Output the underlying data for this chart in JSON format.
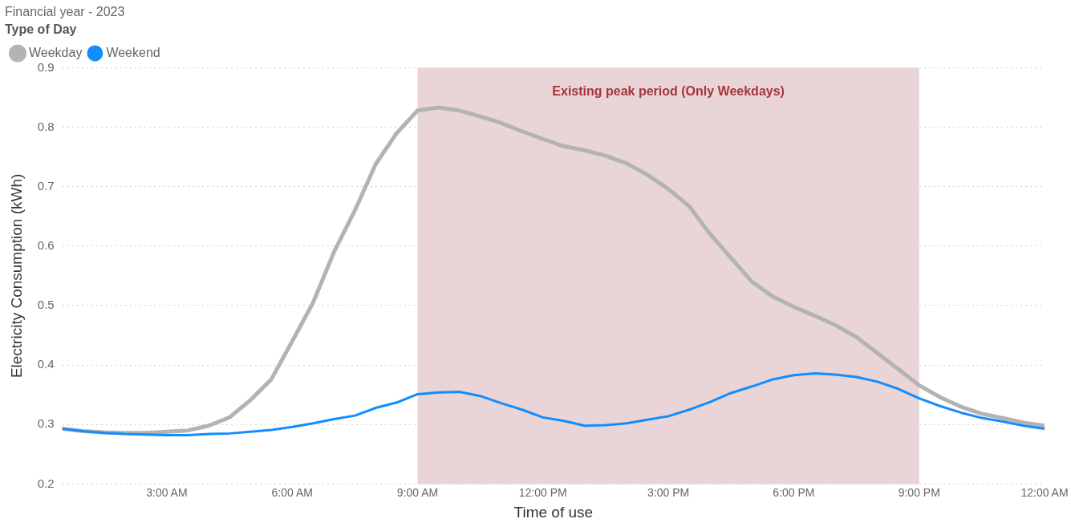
{
  "chart_data": {
    "type": "line",
    "title": "Financial year - 2023",
    "xlabel": "Time of use",
    "ylabel": "Electricity Consumption (kWh)",
    "legend_title": "Type of Day",
    "legend": "top left",
    "grid": "y",
    "marker": "none",
    "line_style": "solid",
    "x": [
      0.5,
      1,
      1.5,
      2,
      2.5,
      3,
      3.5,
      4,
      4.5,
      5,
      5.5,
      6,
      6.5,
      7,
      7.5,
      8,
      8.5,
      9,
      9.5,
      10,
      10.5,
      11,
      11.5,
      12,
      12.5,
      13,
      13.5,
      14,
      14.5,
      15,
      15.5,
      16,
      16.5,
      17,
      17.5,
      18,
      18.5,
      19,
      19.5,
      20,
      20.5,
      21,
      21.5,
      22,
      22.5,
      23,
      23.5,
      24
    ],
    "xlim": [
      0.5,
      24
    ],
    "xticks": [
      {
        "value": 3,
        "label": "3:00 AM"
      },
      {
        "value": 6,
        "label": "6:00 AM"
      },
      {
        "value": 9,
        "label": "9:00 AM"
      },
      {
        "value": 12,
        "label": "12:00 PM"
      },
      {
        "value": 15,
        "label": "3:00 PM"
      },
      {
        "value": 18,
        "label": "6:00 PM"
      },
      {
        "value": 21,
        "label": "9:00 PM"
      },
      {
        "value": 24,
        "label": "12:00 AM"
      }
    ],
    "ylim": [
      0.2,
      0.9
    ],
    "yticks": [
      0.2,
      0.3,
      0.4,
      0.5,
      0.6,
      0.7,
      0.8,
      0.9
    ],
    "series": [
      {
        "name": "Weekday",
        "color": "#b3b3b3",
        "values": [
          0.293,
          0.289,
          0.287,
          0.286,
          0.286,
          0.288,
          0.29,
          0.298,
          0.312,
          0.341,
          0.376,
          0.44,
          0.505,
          0.59,
          0.66,
          0.738,
          0.79,
          0.828,
          0.833,
          0.828,
          0.818,
          0.807,
          0.793,
          0.78,
          0.768,
          0.761,
          0.752,
          0.739,
          0.72,
          0.696,
          0.667,
          0.62,
          0.58,
          0.54,
          0.515,
          0.498,
          0.483,
          0.467,
          0.447,
          0.42,
          0.393,
          0.366,
          0.346,
          0.33,
          0.318,
          0.311,
          0.303,
          0.298
        ]
      },
      {
        "name": "Weekend",
        "color": "#118dff",
        "values": [
          0.293,
          0.289,
          0.286,
          0.284,
          0.283,
          0.282,
          0.282,
          0.284,
          0.285,
          0.288,
          0.291,
          0.296,
          0.302,
          0.309,
          0.315,
          0.328,
          0.337,
          0.351,
          0.354,
          0.355,
          0.348,
          0.336,
          0.325,
          0.312,
          0.306,
          0.298,
          0.299,
          0.302,
          0.308,
          0.314,
          0.325,
          0.338,
          0.353,
          0.364,
          0.376,
          0.383,
          0.386,
          0.384,
          0.38,
          0.372,
          0.36,
          0.344,
          0.331,
          0.32,
          0.311,
          0.305,
          0.298,
          0.293
        ]
      }
    ],
    "bands": [
      {
        "axis": "x",
        "from": 9,
        "to": 21,
        "label": "Existing peak period (Only Weekdays)",
        "color": "#e9d5d7"
      }
    ]
  }
}
